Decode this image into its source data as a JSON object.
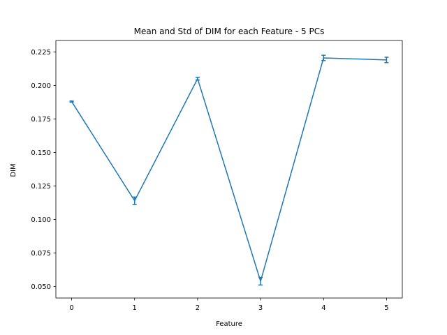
{
  "chart_data": {
    "type": "line",
    "title": "Mean and Std of DIM for each Feature - 5 PCs",
    "xlabel": "Feature",
    "ylabel": "DIM",
    "x": [
      0,
      1,
      2,
      3,
      4,
      5
    ],
    "x_tick_labels": [
      "0",
      "1",
      "2",
      "3",
      "4",
      "5"
    ],
    "y_ticks": [
      0.05,
      0.075,
      0.1,
      0.125,
      0.15,
      0.175,
      0.2,
      0.225
    ],
    "y_tick_labels": [
      "0.050",
      "0.075",
      "0.100",
      "0.125",
      "0.150",
      "0.175",
      "0.200",
      "0.225"
    ],
    "xlim": [
      -0.25,
      5.25
    ],
    "ylim": [
      0.0415,
      0.2335
    ],
    "series": [
      {
        "values": [
          0.188,
          0.114,
          0.205,
          0.054,
          0.2205,
          0.219
        ],
        "errors": [
          0.0004,
          0.0028,
          0.001,
          0.0028,
          0.002,
          0.002
        ],
        "color": "#1f77b4"
      }
    ],
    "grid": false,
    "legend": "none"
  }
}
